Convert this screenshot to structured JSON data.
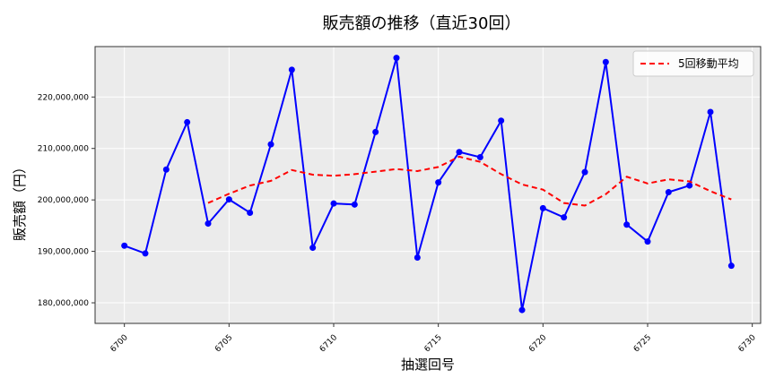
{
  "chart_data": {
    "type": "line",
    "title": "販売額の推移（直近30回）",
    "xlabel": "抽選回号",
    "ylabel": "販売額（円）",
    "xlim": [
      6698.6,
      6730.4
    ],
    "ylim": [
      176000000,
      229800000
    ],
    "x_ticks": [
      6700,
      6705,
      6710,
      6715,
      6720,
      6725,
      6730
    ],
    "y_ticks": [
      180000000,
      190000000,
      200000000,
      210000000,
      220000000
    ],
    "y_tick_labels": [
      "180,000,000",
      "190,000,000",
      "200,000,000",
      "210,000,000",
      "220,000,000"
    ],
    "grid": true,
    "legend_position": "top-right",
    "x": [
      6700,
      6701,
      6702,
      6703,
      6704,
      6705,
      6706,
      6707,
      6708,
      6709,
      6710,
      6711,
      6712,
      6713,
      6714,
      6715,
      6716,
      6717,
      6718,
      6719,
      6720,
      6721,
      6722,
      6723,
      6724,
      6725,
      6726,
      6727,
      6728,
      6729
    ],
    "series": [
      {
        "style": "solid-markers",
        "color": "#0000ff",
        "values": [
          191100000,
          189600000,
          205900000,
          215100000,
          195400000,
          200100000,
          197500000,
          210800000,
          225300000,
          190700000,
          199300000,
          199100000,
          213200000,
          227600000,
          188800000,
          203400000,
          209300000,
          208300000,
          215400000,
          178600000,
          198400000,
          196600000,
          205400000,
          226800000,
          195200000,
          191900000,
          201500000,
          202800000,
          217100000,
          187200000
        ]
      },
      {
        "name": "5回移動平均",
        "style": "dashed",
        "color": "#ff0000",
        "values": [
          null,
          null,
          null,
          null,
          199400000,
          201200000,
          202800000,
          203700000,
          205800000,
          204900000,
          204700000,
          205000000,
          205500000,
          206000000,
          205600000,
          206400000,
          208400000,
          207400000,
          205000000,
          203000000,
          202000000,
          199400000,
          198900000,
          201100000,
          204500000,
          203200000,
          204000000,
          203600000,
          201700000,
          200100000
        ]
      }
    ]
  }
}
